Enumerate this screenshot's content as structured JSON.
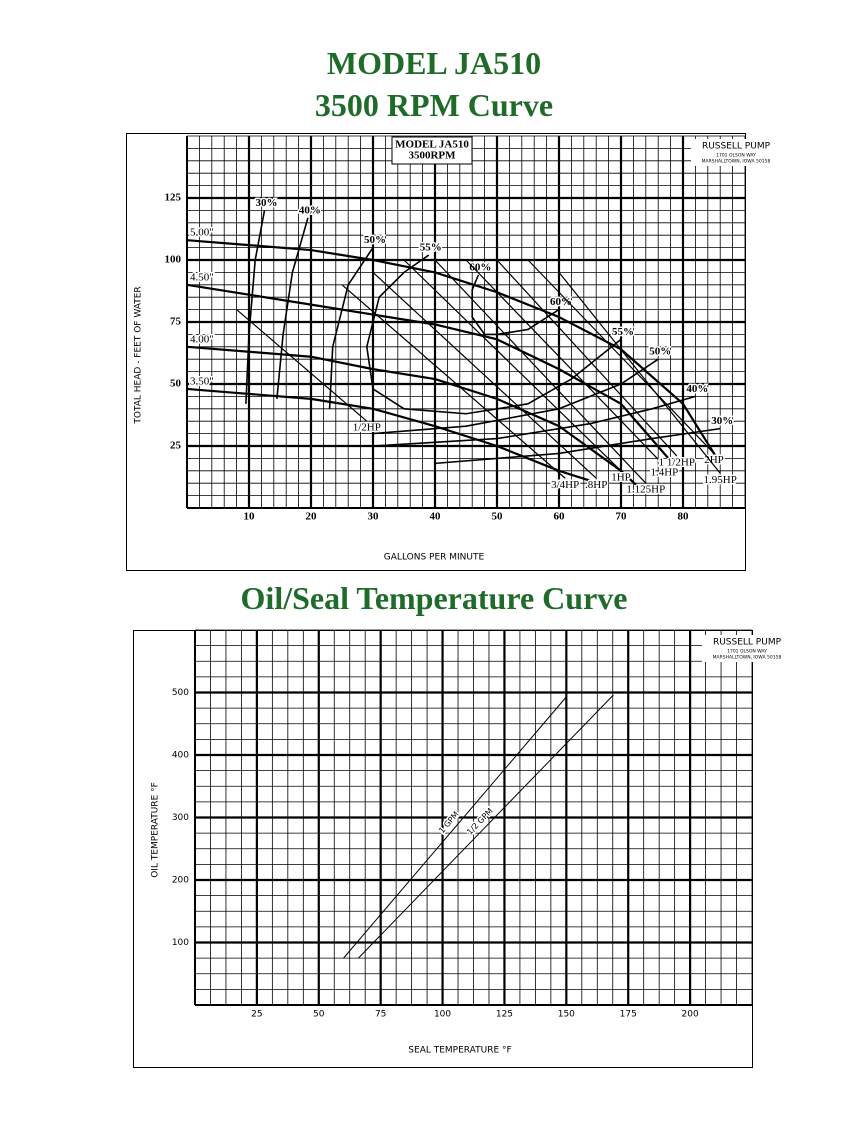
{
  "header": {
    "title": "MODEL JA510",
    "subtitle": "3500 RPM Curve"
  },
  "section_title": "Oil/Seal Temperature Curve",
  "chart_data": [
    {
      "type": "line",
      "title": "MODEL JA510",
      "subtitle": "3500RPM",
      "company": {
        "name": "RUSSELL PUMP",
        "street": "1701 OLSON WAY",
        "city": "MARSHALLTOWN, IOWA 50158"
      },
      "xlabel": "GALLONS PER MINUTE",
      "ylabel": "TOTAL HEAD - FEET OF WATER",
      "xlim": [
        0,
        90
      ],
      "ylim": [
        0,
        150
      ],
      "xticks": [
        10,
        20,
        30,
        40,
        50,
        60,
        70,
        80
      ],
      "yticks": [
        25,
        50,
        75,
        100,
        125
      ],
      "grid": true,
      "minor_divisions": 5,
      "color": "#000000",
      "impeller_curves": [
        {
          "name": "5.00\"",
          "x": [
            0,
            10,
            20,
            30,
            40,
            50,
            60,
            70,
            80,
            86
          ],
          "values": [
            108,
            106,
            104,
            100,
            95,
            87,
            77,
            64,
            42,
            18
          ]
        },
        {
          "name": "4.50\"",
          "x": [
            0,
            10,
            20,
            30,
            40,
            50,
            60,
            70,
            78
          ],
          "values": [
            90,
            86,
            82,
            78,
            74,
            68,
            56,
            42,
            19
          ]
        },
        {
          "name": "4.00\"",
          "x": [
            0,
            10,
            20,
            30,
            40,
            50,
            60,
            70,
            73
          ],
          "values": [
            65,
            63,
            61,
            56,
            52,
            44,
            33,
            15,
            8
          ]
        },
        {
          "name": "3.50\"",
          "x": [
            0,
            10,
            20,
            30,
            40,
            50,
            60,
            65
          ],
          "values": [
            48,
            46,
            44,
            40,
            33,
            25,
            15,
            11
          ]
        }
      ],
      "efficiency_curves": [
        {
          "name": "30%",
          "x": [
            9.5,
            10,
            11,
            12.5
          ],
          "values": [
            42,
            70,
            100,
            120
          ]
        },
        {
          "name": "40%",
          "x": [
            14.5,
            15.5,
            17,
            19.5
          ],
          "values": [
            44,
            70,
            95,
            117
          ]
        },
        {
          "name": "50%",
          "x": [
            23,
            23.5,
            26,
            30
          ],
          "values": [
            40,
            65,
            90,
            105
          ]
        },
        {
          "name": "55%",
          "x": [
            45,
            35,
            30,
            29,
            31,
            35,
            39
          ],
          "values": [
            38,
            40,
            48,
            65,
            85,
            95,
            102
          ]
        },
        {
          "name": "60%",
          "x": [
            52,
            48,
            46,
            46,
            47
          ],
          "values": [
            70,
            70,
            77,
            88,
            94
          ]
        },
        {
          "name": "60%",
          "x": [
            50,
            55,
            60
          ],
          "values": [
            70,
            72,
            80
          ]
        },
        {
          "name": "55%",
          "x": [
            45,
            55,
            62,
            70
          ],
          "values": [
            38,
            42,
            52,
            68
          ]
        },
        {
          "name": "50%",
          "x": [
            30,
            45,
            60,
            70,
            76
          ],
          "values": [
            30,
            33,
            40,
            50,
            60
          ]
        },
        {
          "name": "40%",
          "x": [
            30,
            50,
            65,
            75,
            82
          ],
          "values": [
            25,
            28,
            34,
            40,
            45
          ]
        },
        {
          "name": "30%",
          "x": [
            40,
            60,
            75,
            86
          ],
          "values": [
            18,
            22,
            28,
            32
          ]
        }
      ],
      "power_curves": [
        {
          "name": "1/2HP",
          "x": [
            8,
            29
          ],
          "values": [
            80,
            35
          ]
        },
        {
          "name": "3/4HP",
          "x": [
            25,
            61
          ],
          "values": [
            90,
            12
          ]
        },
        {
          "name": ".8HP",
          "x": [
            30,
            66
          ],
          "values": [
            95,
            12
          ]
        },
        {
          "name": "1HP",
          "x": [
            35,
            70
          ],
          "values": [
            100,
            15
          ]
        },
        {
          "name": "1.125HP",
          "x": [
            40,
            74
          ],
          "values": [
            100,
            10
          ]
        },
        {
          "name": "1.4HP",
          "x": [
            45,
            77
          ],
          "values": [
            100,
            17
          ]
        },
        {
          "name": "1 1/2HP",
          "x": [
            50,
            79
          ],
          "values": [
            100,
            21
          ]
        },
        {
          "name": "2HP",
          "x": [
            55,
            85
          ],
          "values": [
            100,
            22
          ]
        },
        {
          "name": "1.95HP",
          "x": [
            60,
            86
          ],
          "values": [
            95,
            14
          ]
        }
      ]
    },
    {
      "type": "line",
      "company": {
        "name": "RUSSELL PUMP",
        "street": "1701 OLSON WAY",
        "city": "MARSHALLTOWN, IOWA 50158"
      },
      "xlabel": "SEAL TEMPERATURE °F",
      "ylabel": "OIL TEMPERATURE °F",
      "xlim": [
        0,
        225
      ],
      "ylim": [
        0,
        600
      ],
      "xticks": [
        25,
        50,
        75,
        100,
        125,
        150,
        175,
        200
      ],
      "yticks": [
        100,
        200,
        300,
        400,
        500
      ],
      "grid": true,
      "minor_divisions": 4,
      "color": "#000000",
      "series": [
        {
          "name": "1 GPM",
          "x": [
            60,
            150
          ],
          "values": [
            75,
            493
          ]
        },
        {
          "name": "1/2 GPM",
          "x": [
            66,
            169
          ],
          "values": [
            75,
            496
          ]
        }
      ]
    }
  ]
}
